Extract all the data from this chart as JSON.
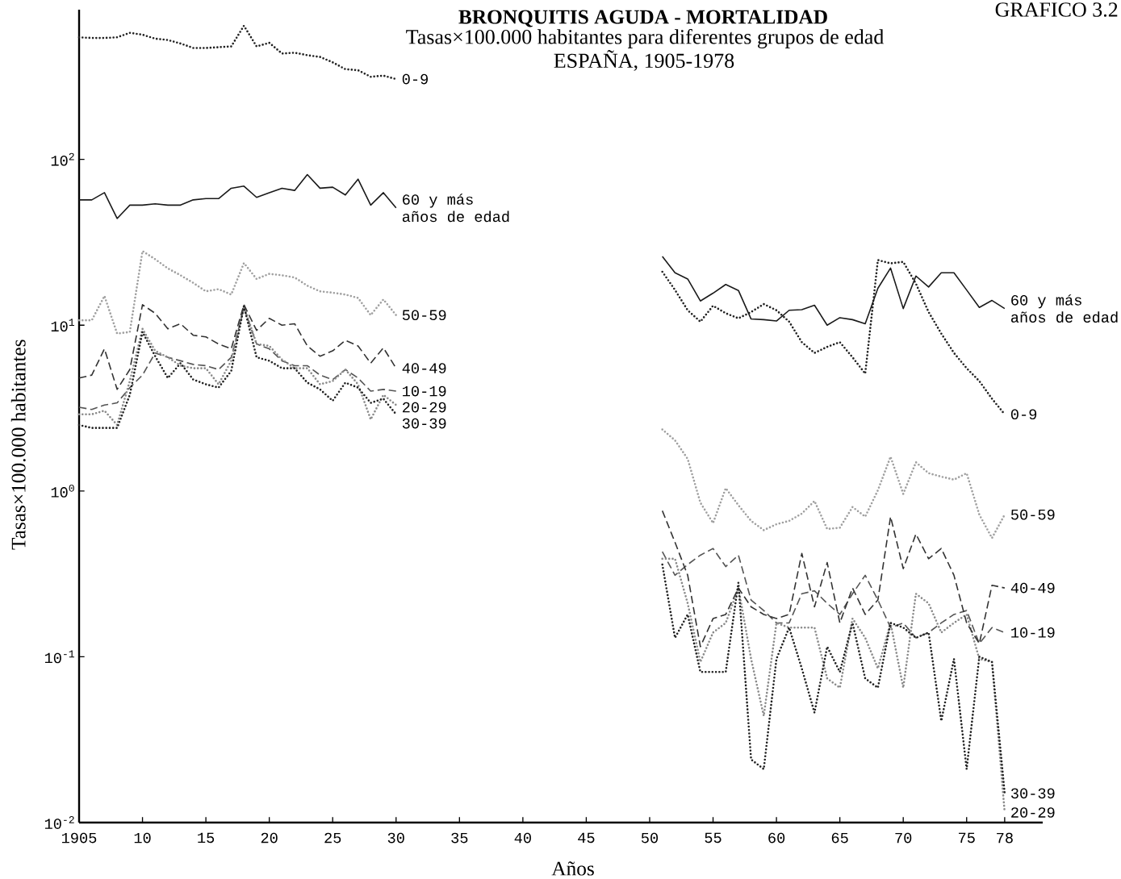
{
  "chart_data": {
    "type": "line",
    "title": "BRONQUITIS AGUDA - MORTALIDAD",
    "subtitle": "Tasas×100.000 habitantes para diferentes grupos de edad",
    "xlabel": "Años",
    "ylabel": "Tasas×100.000 habitantes",
    "annotations": [
      "ESPAÑA, 1905-1978",
      "GRAFICO 3.2"
    ],
    "log": "y",
    "x": [
      1905,
      1906,
      1907,
      1908,
      1909,
      1910,
      1911,
      1912,
      1913,
      1914,
      1915,
      1916,
      1917,
      1918,
      1919,
      1920,
      1921,
      1922,
      1923,
      1924,
      1925,
      1926,
      1927,
      1928,
      1929,
      1930,
      1931,
      1932,
      1933,
      1934,
      1935,
      1936,
      1937,
      1938,
      1939,
      1940,
      1941,
      1942,
      1943,
      1944,
      1945,
      1946,
      1947,
      1948,
      1949,
      1950,
      1951,
      1952,
      1953,
      1954,
      1955,
      1956,
      1957,
      1958,
      1959,
      1960,
      1961,
      1962,
      1963,
      1964,
      1965,
      1966,
      1967,
      1968,
      1969,
      1970,
      1971,
      1972,
      1973,
      1974,
      1975,
      1976,
      1977,
      1978
    ],
    "series": [
      {
        "name": "0-9",
        "color": "#222222",
        "line_style": "dotted",
        "values": [
          545,
          540,
          540,
          545,
          580,
          565,
          535,
          525,
          500,
          470,
          470,
          475,
          480,
          640,
          480,
          505,
          435,
          440,
          425,
          415,
          385,
          350,
          345,
          315,
          320,
          305,
          null,
          null,
          null,
          null,
          null,
          null,
          null,
          null,
          null,
          null,
          null,
          null,
          null,
          null,
          null,
          null,
          null,
          null,
          null,
          null,
          21,
          16.3,
          12.3,
          10.5,
          13.1,
          11.8,
          11.0,
          12.0,
          13.4,
          12.3,
          10.5,
          7.9,
          6.8,
          7.4,
          7.9,
          6.4,
          5.1,
          24.7,
          23.6,
          24.1,
          17.8,
          12.0,
          8.9,
          6.8,
          5.5,
          4.6,
          3.6,
          2.9
        ]
      },
      {
        "name": "10-19",
        "color": "#555555",
        "line_style": "dashed",
        "values": [
          3.2,
          3.1,
          3.3,
          3.4,
          4.2,
          5.0,
          6.8,
          6.4,
          6.1,
          5.8,
          5.7,
          5.4,
          6.4,
          12.7,
          7.7,
          7.2,
          6.1,
          5.7,
          5.7,
          5.0,
          4.7,
          5.4,
          4.8,
          4.0,
          4.1,
          4.0,
          null,
          null,
          null,
          null,
          null,
          null,
          null,
          null,
          null,
          null,
          null,
          null,
          null,
          null,
          null,
          null,
          null,
          null,
          null,
          null,
          0.43,
          0.31,
          0.36,
          0.41,
          0.45,
          0.35,
          0.41,
          0.22,
          0.19,
          0.16,
          0.16,
          0.24,
          0.25,
          0.21,
          0.18,
          0.24,
          0.31,
          0.22,
          0.15,
          0.16,
          0.13,
          0.14,
          0.16,
          0.18,
          0.19,
          0.12,
          0.15,
          0.14
        ]
      },
      {
        "name": "20-29",
        "color": "#8a8a8a",
        "line_style": "dotted",
        "values": [
          2.9,
          2.9,
          3.05,
          2.5,
          4.6,
          9.5,
          7.0,
          6.4,
          5.7,
          5.5,
          5.5,
          4.4,
          6.1,
          13,
          7.7,
          7.5,
          6.2,
          5.5,
          5.5,
          4.4,
          4.6,
          5.4,
          4.4,
          2.7,
          3.8,
          3.3,
          null,
          null,
          null,
          null,
          null,
          null,
          null,
          null,
          null,
          null,
          null,
          null,
          null,
          null,
          null,
          null,
          null,
          null,
          null,
          null,
          0.39,
          0.39,
          0.21,
          0.093,
          0.14,
          0.16,
          0.26,
          0.097,
          0.044,
          0.16,
          0.15,
          0.15,
          0.15,
          0.074,
          0.065,
          0.17,
          0.13,
          0.085,
          0.16,
          0.065,
          0.24,
          0.21,
          0.14,
          0.16,
          0.18,
          0.097,
          0.093,
          0.0115
        ]
      },
      {
        "name": "30-39",
        "color": "#222222",
        "line_style": "dotted",
        "values": [
          2.5,
          2.4,
          2.4,
          2.4,
          3.8,
          9.1,
          6.5,
          4.8,
          5.9,
          4.7,
          4.4,
          4.2,
          5.3,
          13,
          6.4,
          6.1,
          5.5,
          5.5,
          4.5,
          4.1,
          3.5,
          4.5,
          4.2,
          3.4,
          3.6,
          2.9,
          null,
          null,
          null,
          null,
          null,
          null,
          null,
          null,
          null,
          null,
          null,
          null,
          null,
          null,
          null,
          null,
          null,
          null,
          null,
          null,
          0.36,
          0.13,
          0.18,
          0.081,
          0.081,
          0.081,
          0.28,
          0.024,
          0.021,
          0.097,
          0.15,
          0.085,
          0.046,
          0.115,
          0.081,
          0.16,
          0.074,
          0.065,
          0.16,
          0.15,
          0.13,
          0.14,
          0.041,
          0.097,
          0.021,
          0.1,
          0.093,
          0.015
        ]
      },
      {
        "name": "40-49",
        "color": "#333333",
        "line_style": "dashed",
        "values": [
          4.8,
          5.0,
          7.2,
          4.1,
          5.4,
          13.3,
          11.8,
          9.5,
          10.2,
          8.7,
          8.5,
          7.7,
          7.2,
          13.3,
          9.3,
          11.0,
          10.0,
          10.2,
          7.5,
          6.5,
          7.0,
          8.1,
          7.5,
          5.9,
          7.3,
          5.5,
          null,
          null,
          null,
          null,
          null,
          null,
          null,
          null,
          null,
          null,
          null,
          null,
          null,
          null,
          null,
          null,
          null,
          null,
          null,
          null,
          0.76,
          0.49,
          0.31,
          0.115,
          0.17,
          0.18,
          0.26,
          0.2,
          0.18,
          0.17,
          0.18,
          0.42,
          0.2,
          0.37,
          0.16,
          0.26,
          0.18,
          0.22,
          0.7,
          0.34,
          0.55,
          0.39,
          0.45,
          0.31,
          0.16,
          0.12,
          0.27,
          0.26
        ]
      },
      {
        "name": "50-59",
        "color": "#a0a0a0",
        "line_style": "dotted",
        "values": [
          10.7,
          10.7,
          15.0,
          8.9,
          9.1,
          28,
          25,
          22,
          20,
          18,
          16,
          16.5,
          15.3,
          23.7,
          19,
          20.4,
          20,
          19.4,
          17.3,
          16,
          15.7,
          15.3,
          14.6,
          11.5,
          14.3,
          11.5,
          null,
          null,
          null,
          null,
          null,
          null,
          null,
          null,
          null,
          null,
          null,
          null,
          null,
          null,
          null,
          null,
          null,
          null,
          null,
          null,
          2.35,
          2.02,
          1.56,
          0.85,
          0.64,
          1.04,
          0.82,
          0.66,
          0.58,
          0.63,
          0.66,
          0.73,
          0.87,
          0.59,
          0.6,
          0.8,
          0.7,
          1.01,
          1.61,
          0.96,
          1.49,
          1.28,
          1.22,
          1.17,
          1.28,
          0.72,
          0.52,
          0.72
        ]
      },
      {
        "name": "60 y más años de edad",
        "color": "#1a1a1a",
        "line_style": "solid",
        "values": [
          57,
          57,
          63,
          44,
          53,
          53,
          54,
          53,
          53,
          57,
          58,
          58,
          67,
          69,
          59,
          63,
          67,
          65,
          81,
          67,
          68,
          61,
          76,
          53,
          63,
          51,
          null,
          null,
          null,
          null,
          null,
          null,
          null,
          null,
          null,
          null,
          null,
          null,
          null,
          null,
          null,
          null,
          null,
          null,
          null,
          null,
          26,
          20.7,
          19,
          14,
          15.6,
          17.6,
          16.2,
          10.9,
          10.8,
          10.6,
          12.3,
          12.4,
          13.2,
          10.0,
          11.1,
          10.8,
          10.2,
          16.7,
          22.1,
          12.6,
          19.8,
          17.0,
          20.7,
          20.7,
          16.3,
          12.8,
          14.1,
          12.6
        ]
      }
    ],
    "xlim": [
      1905,
      1981
    ],
    "xticks": [
      {
        "value": 1905,
        "label": "1905"
      },
      {
        "value": 1910,
        "label": "10"
      },
      {
        "value": 1915,
        "label": "15"
      },
      {
        "value": 1920,
        "label": "20"
      },
      {
        "value": 1925,
        "label": "25"
      },
      {
        "value": 1930,
        "label": "30"
      },
      {
        "value": 1935,
        "label": "35"
      },
      {
        "value": 1940,
        "label": "40"
      },
      {
        "value": 1945,
        "label": "45"
      },
      {
        "value": 1950,
        "label": "50"
      },
      {
        "value": 1955,
        "label": "55"
      },
      {
        "value": 1960,
        "label": "60"
      },
      {
        "value": 1965,
        "label": "65"
      },
      {
        "value": 1970,
        "label": "70"
      },
      {
        "value": 1975,
        "label": "75"
      },
      {
        "value": 1978,
        "label": "78"
      }
    ],
    "ylim": [
      0.01,
      800
    ],
    "yticks": [
      {
        "value": 0.01,
        "label": "10$^{-2}$"
      },
      {
        "value": 0.1,
        "label": "10$^{-1}$"
      },
      {
        "value": 1,
        "label": "10$^{0}$"
      },
      {
        "value": 10,
        "label": "10$^{1}$"
      },
      {
        "value": 100,
        "label": "10$^{2}$"
      }
    ]
  }
}
